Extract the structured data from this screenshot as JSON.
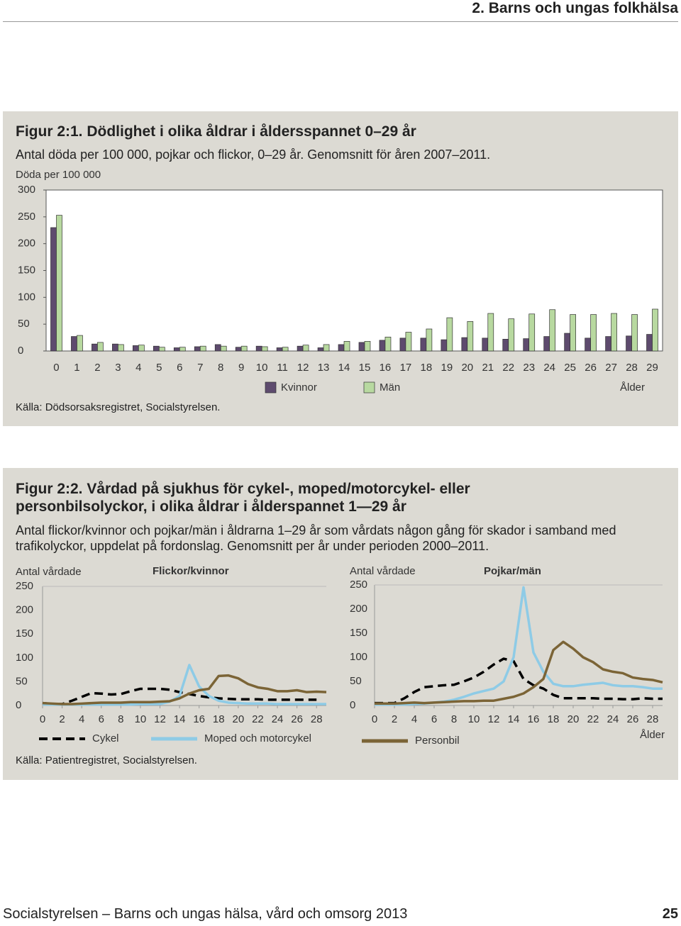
{
  "header": {
    "section": "2. Barns och ungas folkhälsa"
  },
  "figures": [
    {
      "title": "Figur 2:1. Dödlighet i olika åldrar i åldersspannet 0–29 år",
      "subtitle": "Antal döda per 100 000, pojkar och flickor, 0–29 år. Genomsnitt för åren 2007–2011.",
      "source": "Källa: Dödsorsaksregistret, Socialstyrelsen."
    },
    {
      "title": "Figur 2:2. Vårdad på sjukhus för cykel-, moped/motorcykel- eller personbilsolyckor, i olika åldrar i ålderspannet 1—29 år",
      "subtitle": "Antal flickor/kvinnor och pojkar/män i åldrarna 1–29 år som vårdats någon gång för skador i samband med trafikolyckor, uppdelat på fordonslag. Genomsnitt per år under perioden 2000–2011.",
      "source": "Källa: Patientregistret, Socialstyrelsen."
    }
  ],
  "chart_data": [
    {
      "type": "bar",
      "y_label": "Döda per 100 000",
      "x_label": "Ålder",
      "categories": [
        "0",
        "1",
        "2",
        "3",
        "4",
        "5",
        "6",
        "7",
        "8",
        "9",
        "10",
        "11",
        "12",
        "13",
        "14",
        "15",
        "16",
        "17",
        "18",
        "19",
        "20",
        "21",
        "22",
        "23",
        "24",
        "25",
        "26",
        "27",
        "28",
        "29"
      ],
      "series": [
        {
          "name": "Kvinnor",
          "color": "#5e4b6e",
          "values": [
            230,
            27,
            13,
            13,
            10,
            9,
            6,
            8,
            12,
            7,
            9,
            6,
            9,
            6,
            12,
            16,
            20,
            24,
            24,
            21,
            25,
            24,
            22,
            23,
            27,
            33,
            24,
            27,
            28,
            31
          ]
        },
        {
          "name": "Män",
          "color": "#b8d9a0",
          "values": [
            253,
            29,
            16,
            12,
            11,
            7,
            7,
            9,
            9,
            9,
            8,
            7,
            11,
            12,
            18,
            18,
            26,
            35,
            41,
            62,
            55,
            70,
            60,
            69,
            77,
            68,
            68,
            70,
            68,
            78
          ]
        }
      ],
      "ylim": [
        0,
        300
      ],
      "yticks": [
        0,
        50,
        100,
        150,
        200,
        250,
        300
      ]
    },
    {
      "type": "line",
      "title": "Flickor/kvinnor",
      "y_label": "Antal vårdade",
      "x": [
        0,
        1,
        2,
        3,
        4,
        5,
        6,
        7,
        8,
        9,
        10,
        11,
        12,
        13,
        14,
        15,
        16,
        17,
        18,
        19,
        20,
        21,
        22,
        23,
        24,
        25,
        26,
        27,
        28,
        29
      ],
      "series": [
        {
          "name": "Cykel",
          "color": "#000000",
          "dashed": true,
          "values": [
            5,
            3,
            3,
            10,
            18,
            26,
            25,
            23,
            24,
            30,
            35,
            35,
            35,
            33,
            28,
            24,
            20,
            17,
            15,
            14,
            13,
            13,
            13,
            12,
            12,
            12,
            12,
            12,
            12,
            null
          ]
        },
        {
          "name": "Moped och motorcykel",
          "color": "#8ecbe6",
          "dashed": false,
          "values": [
            2,
            2,
            2,
            2,
            2,
            2,
            2,
            2,
            2,
            2,
            3,
            3,
            3,
            8,
            20,
            85,
            40,
            20,
            10,
            6,
            5,
            4,
            4,
            4,
            3,
            3,
            3,
            3,
            3,
            3
          ]
        },
        {
          "name": "Personbil",
          "color": "#7b6436",
          "dashed": false,
          "values": [
            5,
            4,
            3,
            3,
            4,
            5,
            6,
            6,
            6,
            7,
            7,
            7,
            8,
            9,
            15,
            25,
            32,
            35,
            62,
            63,
            57,
            45,
            38,
            35,
            30,
            30,
            32,
            28,
            29,
            28
          ]
        }
      ],
      "legend_series": [
        0,
        1
      ],
      "xlim": [
        0,
        29
      ],
      "xticks": [
        0,
        2,
        4,
        6,
        8,
        10,
        12,
        14,
        16,
        18,
        20,
        22,
        24,
        26,
        28
      ],
      "ylim": [
        0,
        250
      ],
      "yticks": [
        0,
        50,
        100,
        150,
        200,
        250
      ]
    },
    {
      "type": "line",
      "title": "Pojkar/män",
      "y_label": "Antal vårdade",
      "x_label": "Ålder",
      "x": [
        0,
        1,
        2,
        3,
        4,
        5,
        6,
        7,
        8,
        9,
        10,
        11,
        12,
        13,
        14,
        15,
        16,
        17,
        18,
        19,
        20,
        21,
        22,
        23,
        24,
        25,
        26,
        27,
        28,
        29
      ],
      "series": [
        {
          "name": "Cykel",
          "color": "#000000",
          "dashed": true,
          "values": [
            5,
            5,
            5,
            15,
            28,
            38,
            40,
            42,
            43,
            50,
            58,
            70,
            85,
            97,
            92,
            55,
            42,
            35,
            22,
            15,
            15,
            15,
            15,
            14,
            14,
            13,
            13,
            15,
            14,
            14
          ]
        },
        {
          "name": "Moped och motorcykel",
          "color": "#8ecbe6",
          "dashed": false,
          "values": [
            2,
            2,
            2,
            2,
            3,
            4,
            6,
            8,
            12,
            18,
            25,
            30,
            35,
            50,
            100,
            245,
            110,
            70,
            45,
            40,
            40,
            43,
            45,
            47,
            42,
            40,
            40,
            38,
            35,
            35
          ]
        },
        {
          "name": "Personbil",
          "color": "#7b6436",
          "dashed": false,
          "values": [
            4,
            4,
            4,
            5,
            6,
            5,
            6,
            7,
            8,
            9,
            9,
            10,
            10,
            14,
            18,
            25,
            38,
            55,
            115,
            132,
            118,
            100,
            90,
            75,
            70,
            67,
            58,
            55,
            53,
            48
          ]
        }
      ],
      "legend_series": [
        2
      ],
      "xlim": [
        0,
        29
      ],
      "xticks": [
        0,
        2,
        4,
        6,
        8,
        10,
        12,
        14,
        16,
        18,
        20,
        22,
        24,
        26,
        28
      ],
      "ylim": [
        0,
        250
      ],
      "yticks": [
        0,
        50,
        100,
        150,
        200,
        250
      ]
    }
  ],
  "footer": {
    "text": "Socialstyrelsen – Barns och ungas hälsa, vård och omsorg 2013",
    "page": "25"
  }
}
